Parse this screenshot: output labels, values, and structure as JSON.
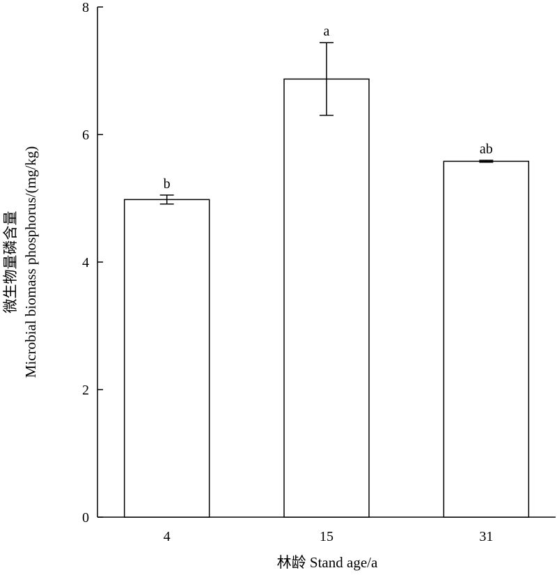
{
  "chart_data": {
    "type": "bar",
    "categories": [
      "4",
      "15",
      "31"
    ],
    "values": [
      4.98,
      6.87,
      5.58
    ],
    "error": [
      0.07,
      0.57,
      0.015
    ],
    "significance": [
      "b",
      "a",
      "ab"
    ],
    "ylim": [
      0,
      8
    ],
    "yticks": [
      "0",
      "2",
      "4",
      "6",
      "8"
    ],
    "xlabel": "林龄 Stand age/a",
    "ylabel_zh": "微生物量磷含量",
    "ylabel_en": "Microbial biomass phosphorus/(mg/kg)",
    "grid": false,
    "bar_fill": "#ffffff",
    "bar_stroke": "#000000"
  }
}
